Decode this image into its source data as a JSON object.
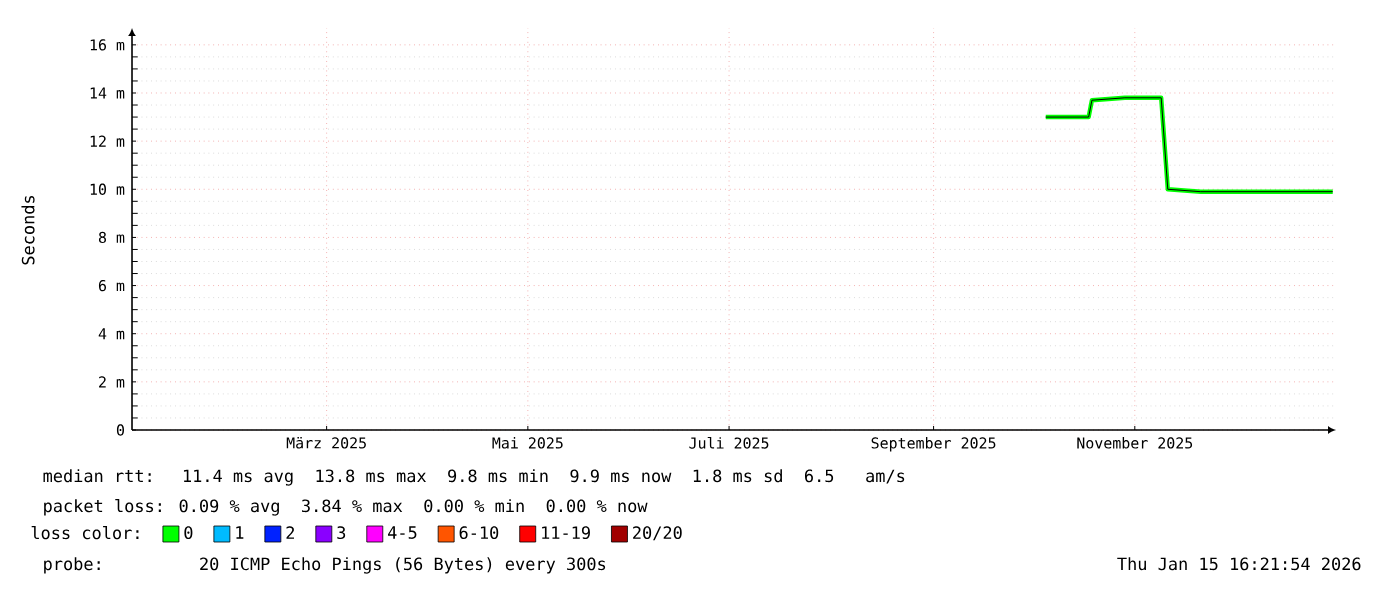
{
  "chart_data": {
    "type": "line",
    "ylabel": "Seconds",
    "xlim": [
      "2025-01-15",
      "2026-01-15"
    ],
    "xticks": [
      {
        "value": "2025-03-15",
        "label": "März 2025"
      },
      {
        "value": "2025-05-15",
        "label": "Mai 2025"
      },
      {
        "value": "2025-07-15",
        "label": "Juli 2025"
      },
      {
        "value": "2025-09-15",
        "label": "September 2025"
      },
      {
        "value": "2025-11-15",
        "label": "November 2025"
      }
    ],
    "ylim": [
      0,
      16.7
    ],
    "yticks": [
      0,
      {
        "value": 2,
        "label": "2 m"
      },
      {
        "value": 4,
        "label": "4 m"
      },
      {
        "value": 6,
        "label": "6 m"
      },
      {
        "value": 8,
        "label": "8 m"
      },
      {
        "value": 10,
        "label": "10 m"
      },
      {
        "value": 12,
        "label": "12 m"
      },
      {
        "value": 14,
        "label": "14 m"
      },
      {
        "value": 16,
        "label": "16 m"
      }
    ],
    "grid": true,
    "legend": "bottom",
    "legend_title": "loss color:",
    "series": [
      {
        "name": "0",
        "color": "#00ff00",
        "x": [
          "2025-10-19",
          "2025-10-26",
          "2025-11-01",
          "2025-11-02",
          "2025-11-12",
          "2025-11-23",
          "2025-11-24",
          "2025-11-25",
          "2025-12-05",
          "2025-12-20",
          "2026-01-14"
        ],
        "values": [
          13.0,
          13.0,
          13.0,
          13.7,
          13.8,
          13.8,
          11.9,
          10.0,
          9.9,
          9.9,
          9.9
        ]
      },
      {
        "name": "1",
        "color": "#00bbff"
      },
      {
        "name": "2",
        "color": "#0022ff"
      },
      {
        "name": "3",
        "color": "#8a00ff"
      },
      {
        "name": "4-5",
        "color": "#ff00ff"
      },
      {
        "name": "6-10",
        "color": "#ff5500"
      },
      {
        "name": "11-19",
        "color": "#ff0000"
      },
      {
        "name": "20/20",
        "color": "#a10000"
      }
    ],
    "annotations": [
      "median rtt:  11.4 ms avg  13.8 ms max  9.8 ms min  9.9 ms now  1.8 ms sd  6.5   am/s",
      "packet loss: 0.09 % avg  3.84 % max  0.00 % min  0.00 % now",
      "probe:       20 ICMP Echo Pings (56 Bytes) every 300s",
      "Thu Jan 15 16:21:54 2026"
    ]
  }
}
